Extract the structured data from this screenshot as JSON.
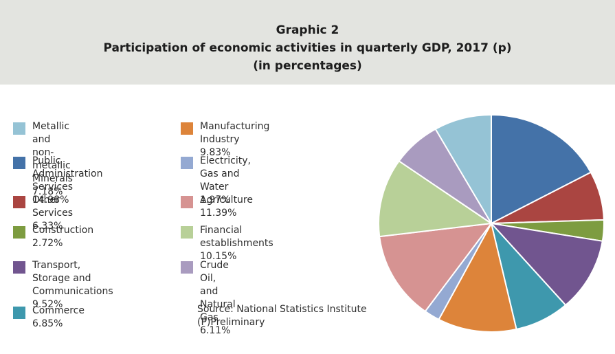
{
  "header": {
    "line1": "Graphic 2",
    "line2": "Participation of economic activities in quarterly GDP, 2017 (p)",
    "line3": "(in percentages)"
  },
  "source": {
    "line1": "Source: National Statistics Institute",
    "line2": "(P)Preliminary"
  },
  "colors": {
    "header_bg": "#e3e4e0"
  },
  "chart_data": {
    "type": "pie",
    "title": "Participation of economic activities in quarterly GDP, 2017 (p)",
    "subtitle": "(in percentages)",
    "legend_position": "left",
    "slices": [
      {
        "label": "Public Administration Services 14.98%",
        "name": "Public Administration Services",
        "value": 14.98,
        "color": "#4472a8"
      },
      {
        "label": "Other Services 6.33%",
        "name": "Other Services",
        "value": 6.33,
        "color": "#aa4541"
      },
      {
        "label": "Construction 2.72%",
        "name": "Construction",
        "value": 2.72,
        "color": "#7d9c40"
      },
      {
        "label": "Transport, Storage and Communications 9.52%",
        "name": "Transport, Storage and Communications",
        "value": 9.52,
        "color": "#71558f"
      },
      {
        "label": "Commerce 6.85%",
        "name": "Commerce",
        "value": 6.85,
        "color": "#3e98ad"
      },
      {
        "label": "Manufacturing Industry 9.83%",
        "name": "Manufacturing Industry",
        "value": 9.83,
        "color": "#dd843a"
      },
      {
        "label": "Electricity, Gas and Water 1.97%",
        "name": "Electricity, Gas and Water",
        "value": 1.97,
        "color": "#94a9d2"
      },
      {
        "label": "Agriculture 11.39%",
        "name": "Agriculture",
        "value": 11.39,
        "color": "#d69392"
      },
      {
        "label": "Financial establishments 10.15%",
        "name": "Financial establishments",
        "value": 10.15,
        "color": "#b8d098"
      },
      {
        "label": "Crude Oil, and Natural Gas 6.11%",
        "name": "Crude Oil, and Natural Gas",
        "value": 6.11,
        "color": "#a99bbf"
      },
      {
        "label": "Metallic and non-metallic Minerals 7.18%",
        "name": "Metallic and non-metallic Minerals",
        "value": 7.18,
        "color": "#95c3d5"
      }
    ]
  },
  "legend": [
    {
      "text": "Metallic and non-metallic\nMinerals 7.18%",
      "color": "#95c3d5"
    },
    {
      "text": "Public Administration\nServices 14.98%",
      "color": "#4472a8"
    },
    {
      "text": "Other Services 6.33%",
      "color": "#aa4541"
    },
    {
      "text": "Construction 2.72%",
      "color": "#7d9c40"
    },
    {
      "text": "Transport, Storage and\nCommunications 9.52%",
      "color": "#71558f"
    },
    {
      "text": "Commerce 6.85%",
      "color": "#3e98ad"
    },
    {
      "text": "Manufacturing Industry 9.83%",
      "color": "#dd843a"
    },
    {
      "text": "Electricity, Gas and Water 1.97%",
      "color": "#94a9d2"
    },
    {
      "text": "Agriculture  11.39%",
      "color": "#d69392"
    },
    {
      "text": "Financial establishments\n10.15%",
      "color": "#b8d098"
    },
    {
      "text": "Crude Oil, and Natural Gas\n6.11%",
      "color": "#a99bbf"
    }
  ]
}
